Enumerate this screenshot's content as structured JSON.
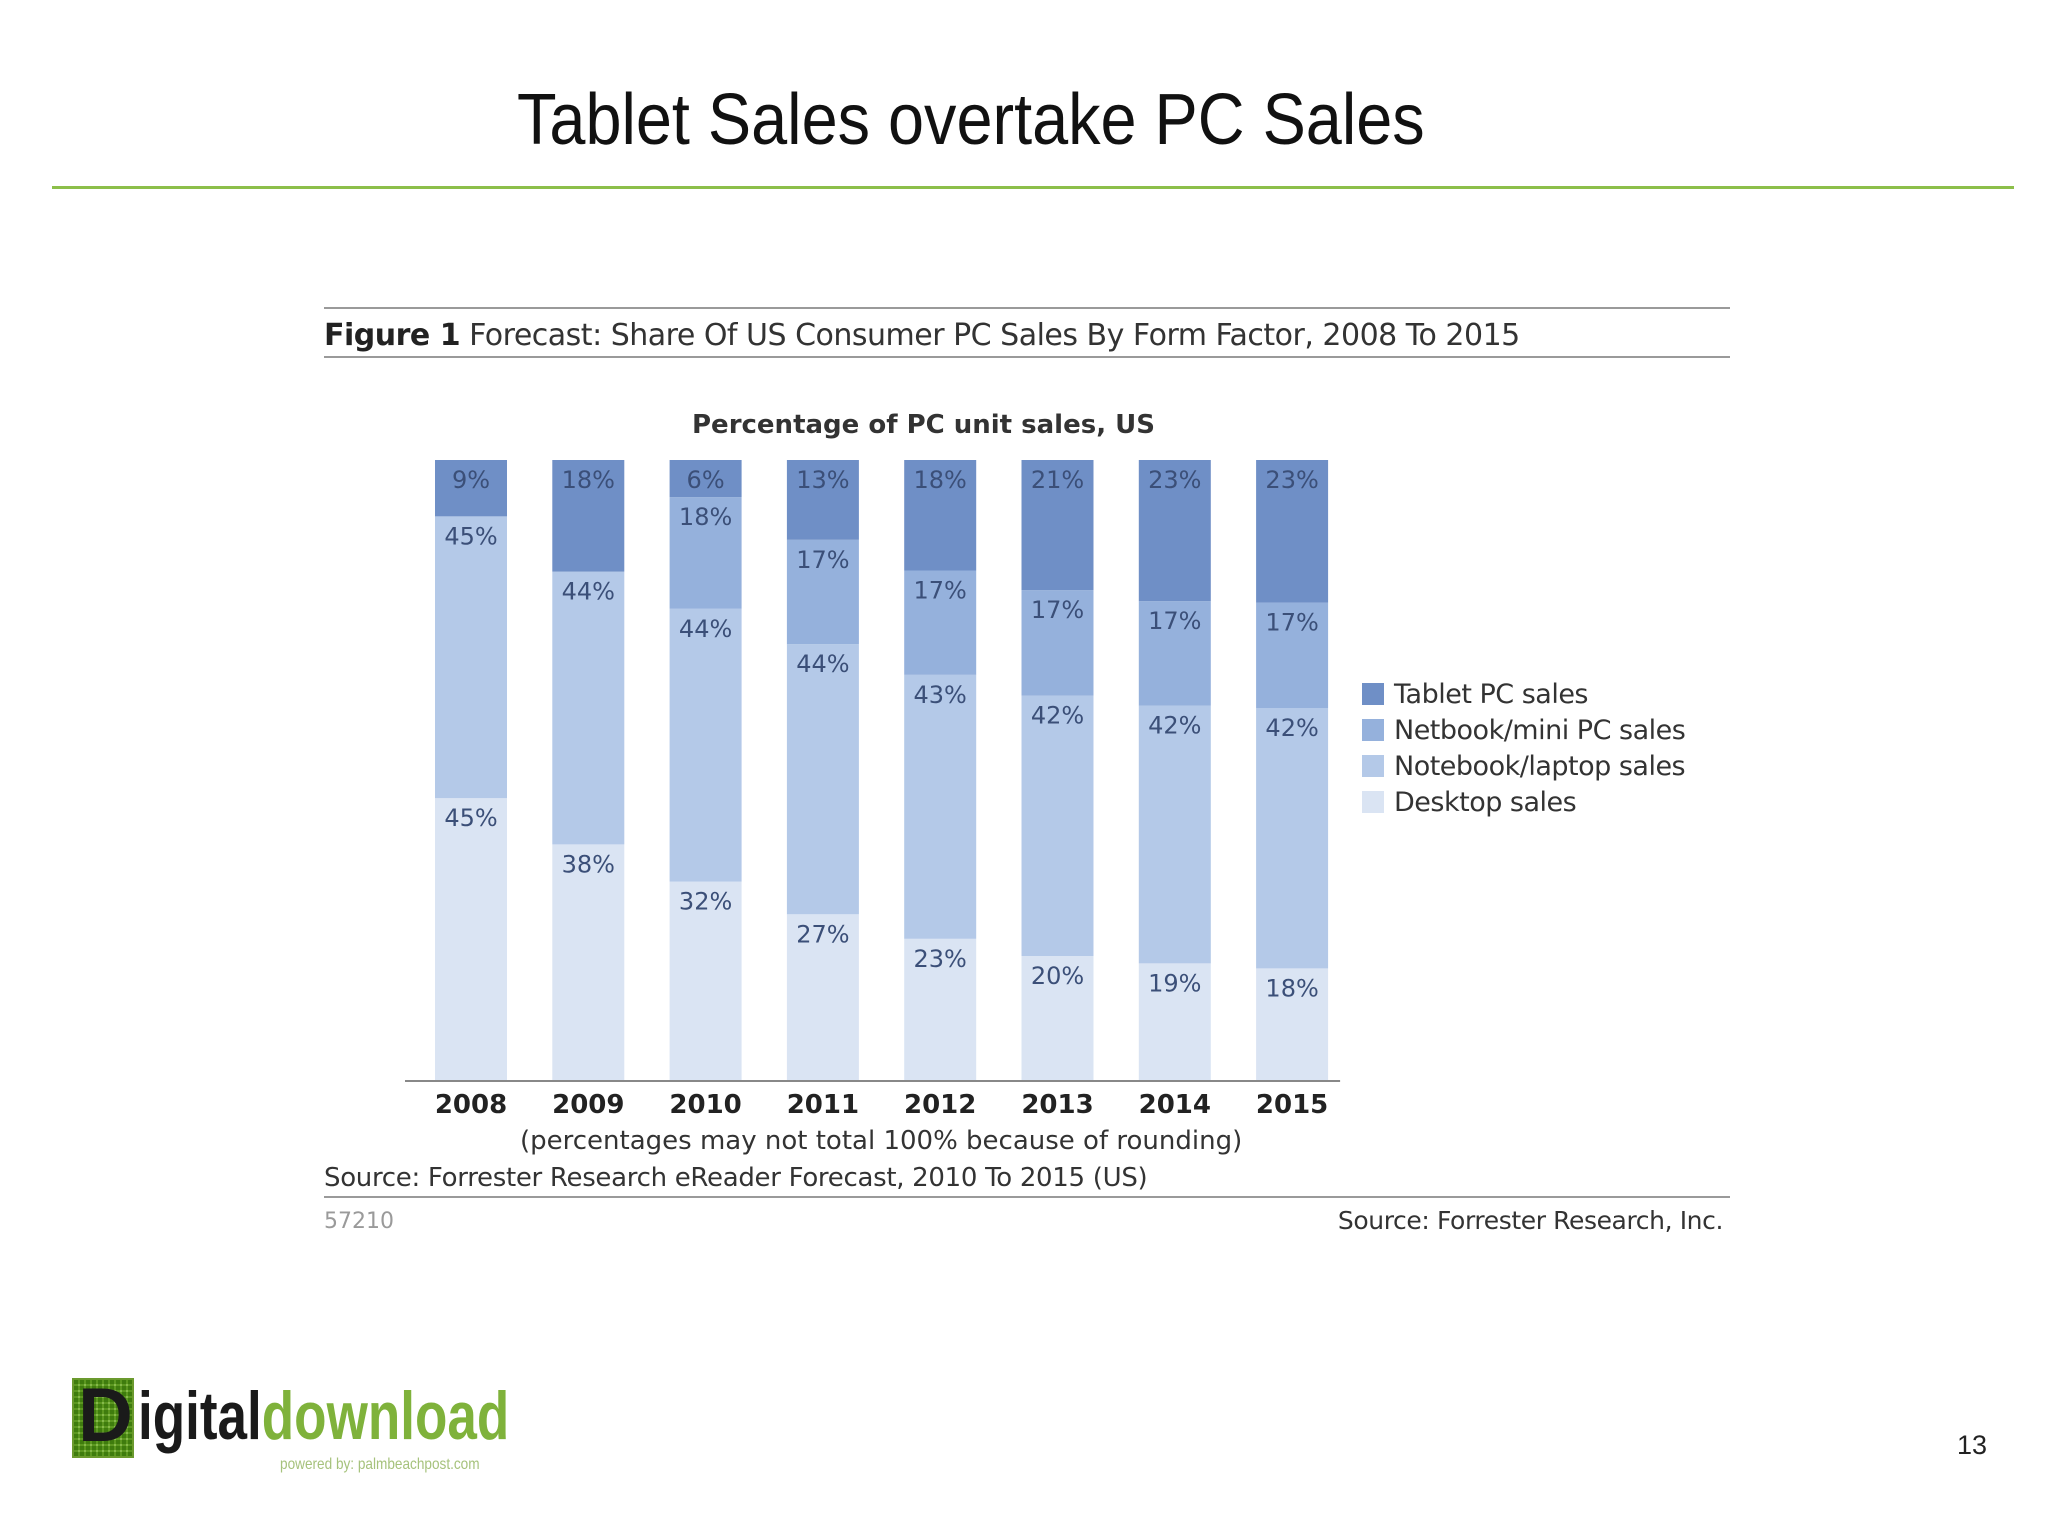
{
  "slide": {
    "title": "Tablet Sales overtake PC Sales",
    "page_number": "13"
  },
  "figure": {
    "label": "Figure 1",
    "heading": "Forecast: Share Of US Consumer PC Sales By Form Factor, 2008 To 2015",
    "chart_subtitle": "Percentage of PC unit sales, US",
    "note": "(percentages may not total 100% because of rounding)",
    "source": "Source: Forrester Research eReader Forecast, 2010 To 2015 (US)",
    "figure_id": "57210",
    "credit": "Source: Forrester Research, Inc."
  },
  "logo": {
    "initial": "D",
    "word1": "igital",
    "word2": "download",
    "tagline": "powered by: palmbeachpost.com"
  },
  "colors": {
    "tablet": "#6f8fc6",
    "netbook": "#95b1dc",
    "notebook": "#b4c9e8",
    "desktop": "#dae4f3",
    "accent_rule": "#8cbf4a"
  },
  "chart_data": {
    "type": "bar",
    "stacked": true,
    "title": "Percentage of PC unit sales, US",
    "categories": [
      "2008",
      "2009",
      "2010",
      "2011",
      "2012",
      "2013",
      "2014",
      "2015"
    ],
    "series": [
      {
        "name": "Desktop sales",
        "color_key": "desktop",
        "values": [
          45,
          38,
          32,
          27,
          23,
          20,
          19,
          18
        ]
      },
      {
        "name": "Notebook/laptop sales",
        "color_key": "notebook",
        "values": [
          45,
          44,
          44,
          44,
          43,
          42,
          42,
          42
        ]
      },
      {
        "name": "Netbook/mini PC sales",
        "color_key": "netbook",
        "values": [
          0,
          0,
          18,
          17,
          17,
          17,
          17,
          17
        ]
      },
      {
        "name": "Tablet PC sales",
        "color_key": "tablet",
        "values": [
          9,
          18,
          6,
          13,
          18,
          21,
          23,
          23
        ]
      }
    ],
    "legend_order": [
      "Tablet PC sales",
      "Netbook/mini PC sales",
      "Notebook/laptop sales",
      "Desktop sales"
    ],
    "legend_position": "right",
    "ylim": [
      0,
      100
    ],
    "grid": false,
    "xlabel": "",
    "ylabel": ""
  }
}
